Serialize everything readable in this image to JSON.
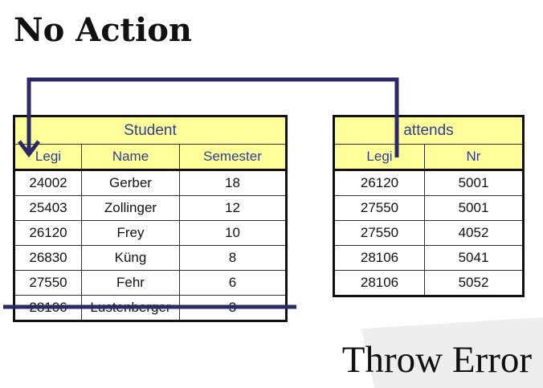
{
  "title": "No Action",
  "footer": "Throw Error",
  "colors": {
    "header_fill": "#ffff99",
    "header_text": "#2e3f8f",
    "arrow": "#2b2a66",
    "background_shape": "#eeeeee"
  },
  "student": {
    "caption": "Student",
    "columns": [
      "Legi",
      "Name",
      "Semester"
    ],
    "rows": [
      [
        "24002",
        "Gerber",
        "18"
      ],
      [
        "25403",
        "Zollinger",
        "12"
      ],
      [
        "26120",
        "Frey",
        "10"
      ],
      [
        "26830",
        "Küng",
        "8"
      ],
      [
        "27550",
        "Fehr",
        "6"
      ],
      [
        "28106",
        "Lustenberger",
        "3"
      ]
    ]
  },
  "attends": {
    "caption": "attends",
    "columns": [
      "Legi",
      "Nr"
    ],
    "rows": [
      [
        "26120",
        "5001"
      ],
      [
        "27550",
        "5001"
      ],
      [
        "27550",
        "4052"
      ],
      [
        "28106",
        "5041"
      ],
      [
        "28106",
        "5052"
      ]
    ]
  },
  "icons": {
    "reference_arrow": "foreign-key-arrow",
    "strike_line": "delete-strikethrough-line"
  }
}
